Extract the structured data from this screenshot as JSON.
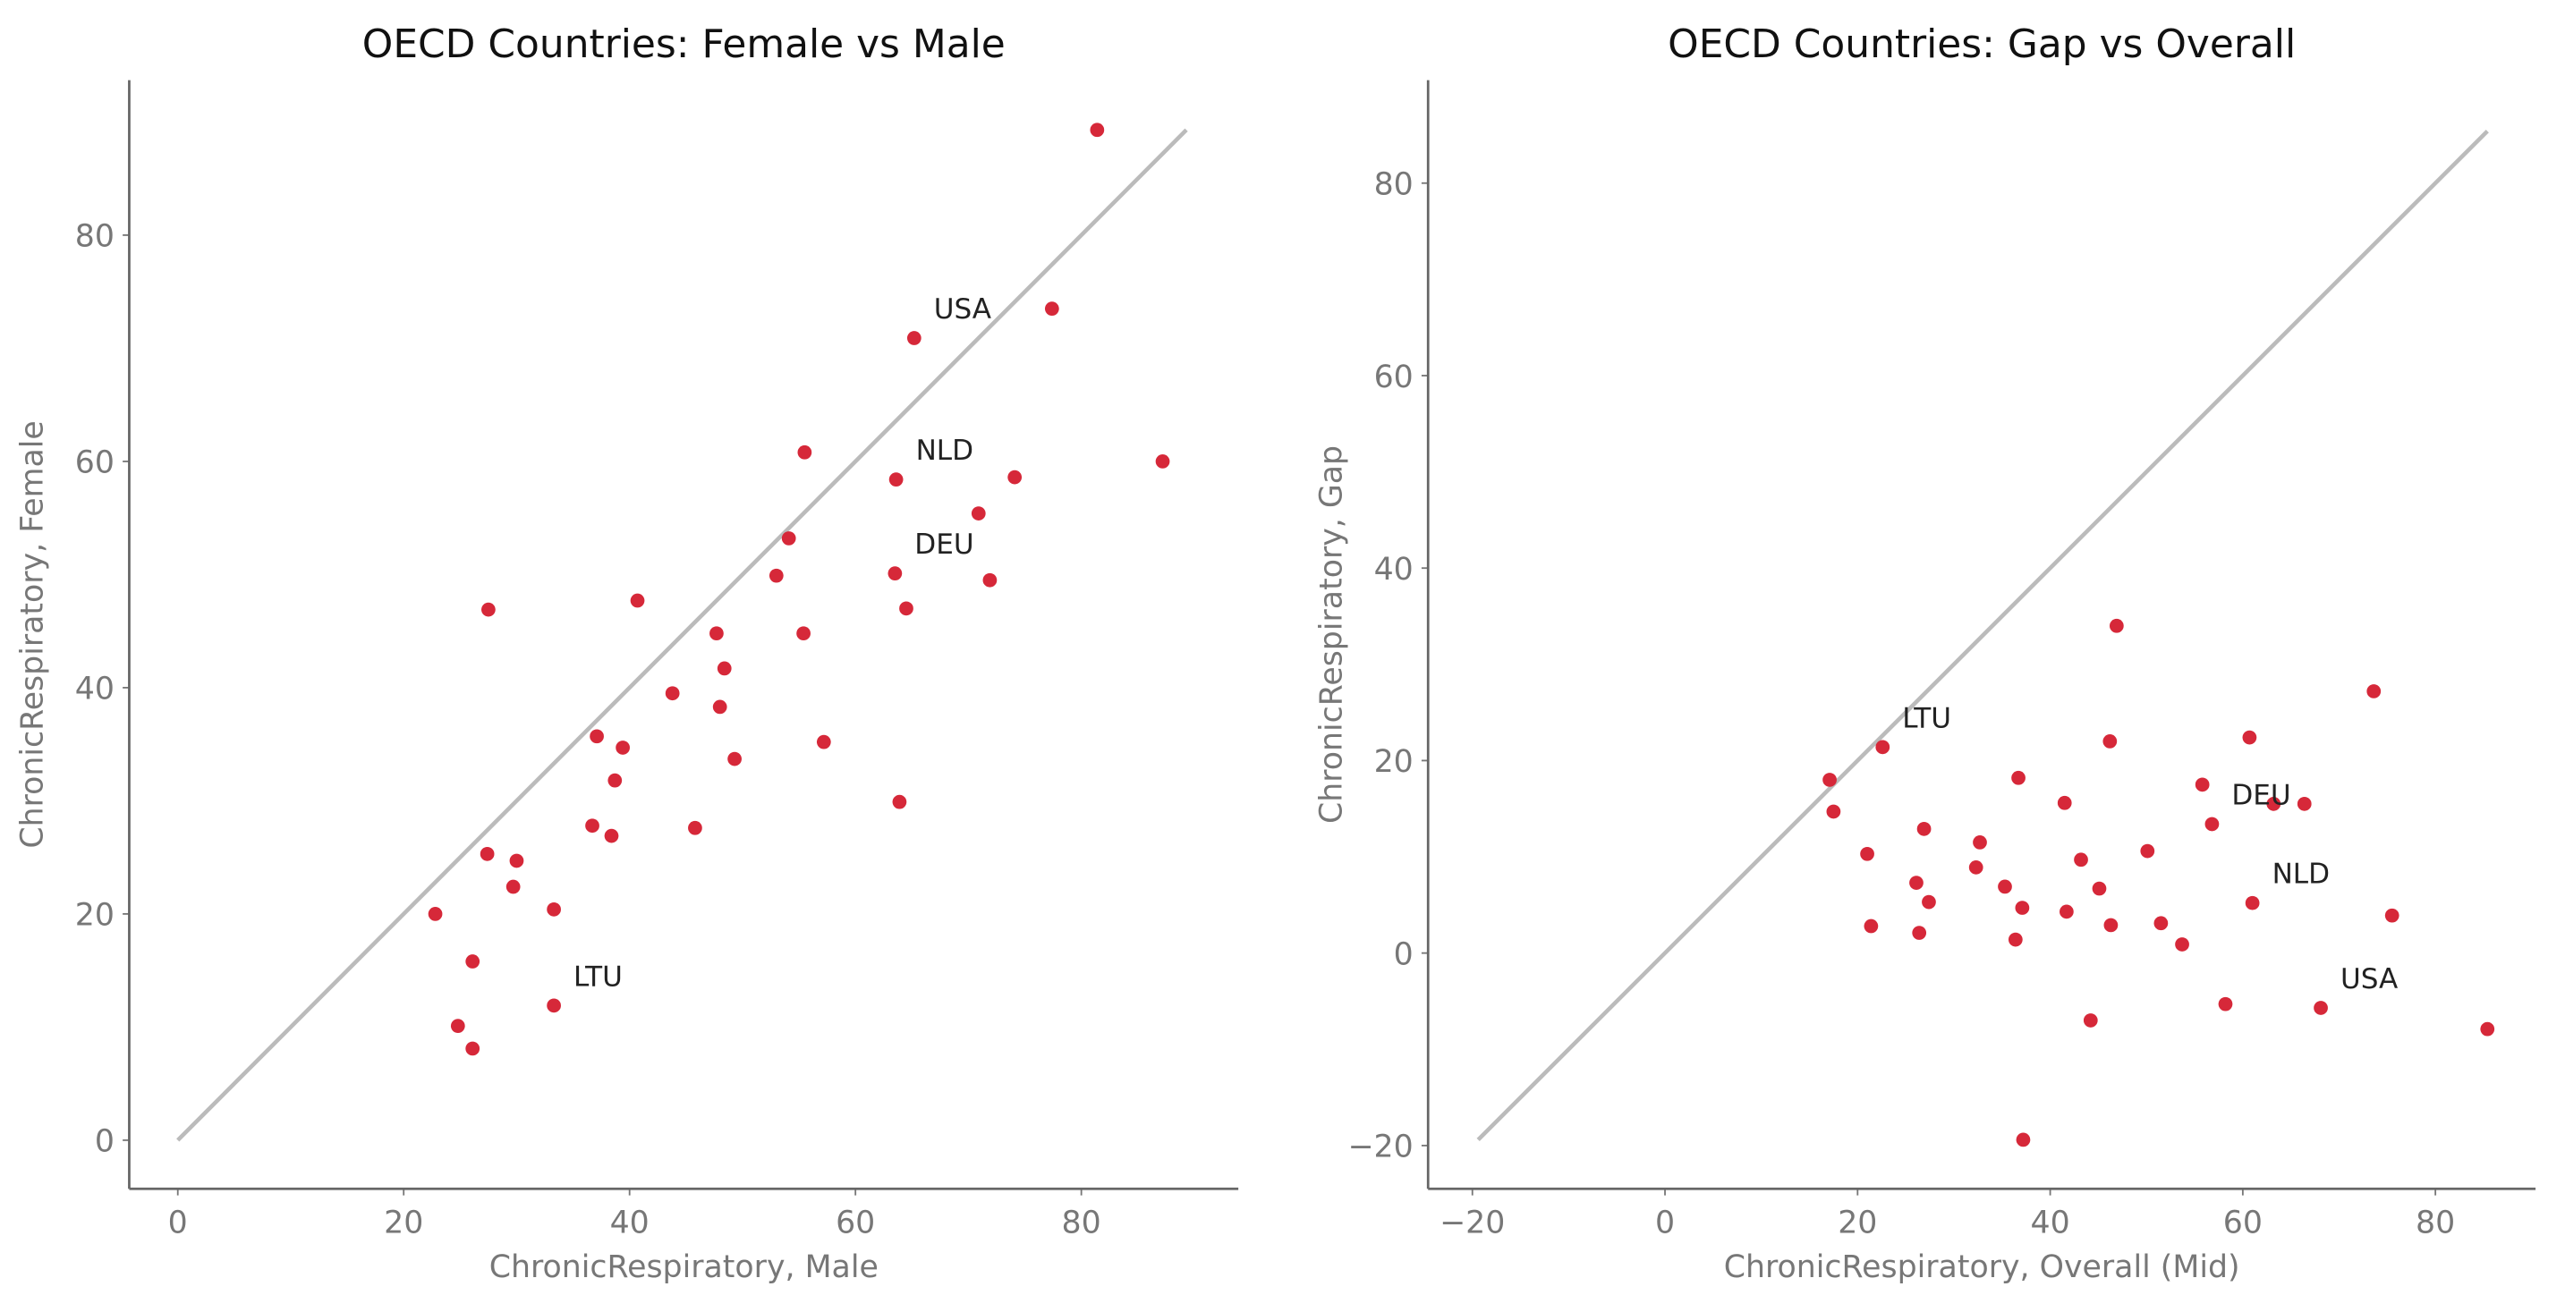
{
  "chart_data": [
    {
      "type": "scatter",
      "title": "OECD Countries: Female vs Male",
      "xlabel": "ChronicRespiratory, Male",
      "ylabel": "ChronicRespiratory, Female",
      "color": "#d62839",
      "line_color": "#bbbbbb",
      "x": [
        81.4,
        77.4,
        65.2,
        87.2,
        55.5,
        63.6,
        74.1,
        70.9,
        54.1,
        53.0,
        63.5,
        71.9,
        64.5,
        27.5,
        40.7,
        47.7,
        55.4,
        48.4,
        43.8,
        48.0,
        57.2,
        37.1,
        39.4,
        49.3,
        38.7,
        63.9,
        36.7,
        38.4,
        45.8,
        27.4,
        30.0,
        29.7,
        33.3,
        22.8,
        26.1,
        33.3,
        24.8,
        26.1
      ],
      "y": [
        89.3,
        73.5,
        70.9,
        60.0,
        60.8,
        58.4,
        58.6,
        55.4,
        53.2,
        49.9,
        50.1,
        49.5,
        47.0,
        46.9,
        47.7,
        44.8,
        44.8,
        41.7,
        39.5,
        38.3,
        35.2,
        35.7,
        34.7,
        33.7,
        31.8,
        29.9,
        27.8,
        26.9,
        27.6,
        25.3,
        24.7,
        22.4,
        20.4,
        20.0,
        15.8,
        11.9,
        10.1,
        8.1
      ],
      "reference_line": [
        0,
        89.3
      ],
      "annotations": [
        {
          "text": "USA",
          "x": 65.2,
          "y": 70.9
        },
        {
          "text": "NLD",
          "x": 63.6,
          "y": 58.4
        },
        {
          "text": "DEU",
          "x": 63.5,
          "y": 50.1
        },
        {
          "text": "LTU",
          "x": 33.3,
          "y": 11.9
        }
      ],
      "xlim": [
        -4.3,
        93.9
      ],
      "ylim": [
        -4.3,
        93.7
      ],
      "xticks": [
        0,
        20,
        40,
        60,
        80
      ],
      "yticks": [
        0,
        20,
        40,
        60,
        80
      ]
    },
    {
      "type": "scatter",
      "title": "OECD Countries: Gap vs Overall",
      "xlabel": "ChronicRespiratory, Overall (Mid)",
      "ylabel": "ChronicRespiratory, Gap",
      "color": "#d62839",
      "line_color": "#bbbbbb",
      "x": [
        85.4,
        75.5,
        68.1,
        73.6,
        58.2,
        61.0,
        66.4,
        63.2,
        53.7,
        51.5,
        56.8,
        60.7,
        55.8,
        37.2,
        44.2,
        46.3,
        50.1,
        45.1,
        41.7,
        43.2,
        46.2,
        36.4,
        37.1,
        41.5,
        35.3,
        46.9,
        32.3,
        32.7,
        36.7,
        26.4,
        27.4,
        26.1,
        26.9,
        21.4,
        21.0,
        22.6,
        17.5,
        17.1
      ],
      "y": [
        -7.9,
        3.9,
        -5.7,
        27.2,
        -5.3,
        5.2,
        15.5,
        15.5,
        0.9,
        3.1,
        13.4,
        22.4,
        17.5,
        -19.4,
        -7.0,
        2.9,
        10.6,
        6.7,
        4.3,
        9.7,
        22.0,
        1.4,
        4.7,
        15.6,
        6.9,
        34.0,
        8.9,
        11.5,
        18.2,
        2.1,
        5.3,
        7.3,
        12.9,
        2.8,
        10.3,
        21.4,
        14.7,
        18.0
      ],
      "reference_line": [
        -19.4,
        85.4
      ],
      "annotations": [
        {
          "text": "USA",
          "x": 68.1,
          "y": -5.7
        },
        {
          "text": "NLD",
          "x": 61.0,
          "y": 5.2
        },
        {
          "text": "DEU",
          "x": 56.8,
          "y": 13.4
        },
        {
          "text": "LTU",
          "x": 22.6,
          "y": 21.4
        }
      ],
      "xlim": [
        -24.6,
        90.4
      ],
      "ylim": [
        -24.5,
        90.7
      ],
      "xticks": [
        {
          "value": -20,
          "label": "−20"
        },
        0,
        20,
        40,
        60,
        80
      ],
      "yticks": [
        {
          "value": -20,
          "label": "−20"
        },
        0,
        20,
        40,
        60,
        80
      ]
    }
  ]
}
